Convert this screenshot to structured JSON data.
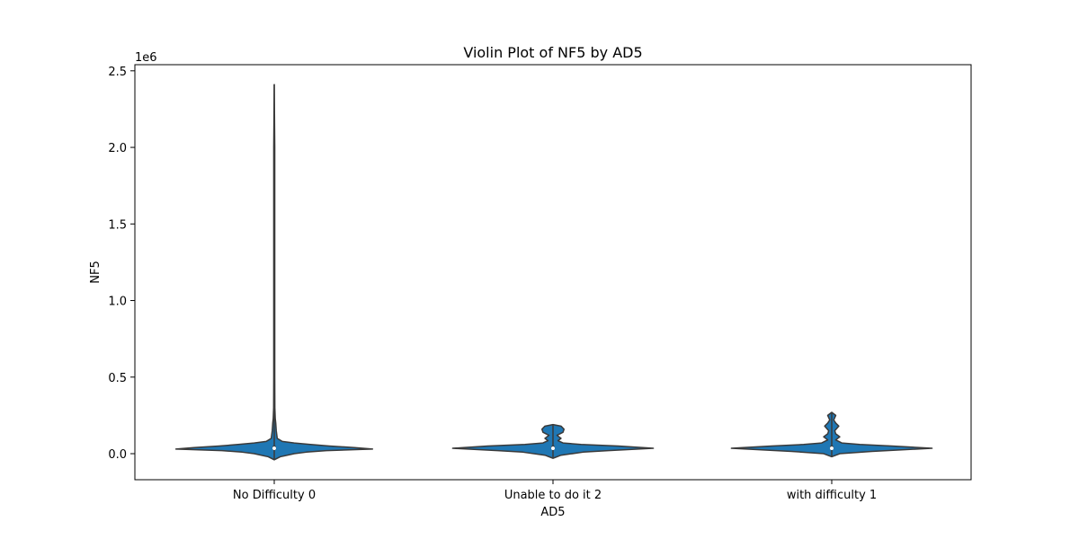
{
  "chart_data": {
    "type": "violin",
    "title": "Violin Plot of NF5 by AD5",
    "xlabel": "AD5",
    "ylabel": "NF5",
    "y_offset_label": "1e6",
    "y_scale": 1000000,
    "ylim": [
      -0.17,
      2.54
    ],
    "yticks": [
      0.0,
      0.5,
      1.0,
      1.5,
      2.0,
      2.5
    ],
    "ytick_labels": [
      "0.0",
      "0.5",
      "1.0",
      "1.5",
      "2.0",
      "2.5"
    ],
    "grid": false,
    "categories": [
      "No Difficulty 0",
      "Unable to do it 2",
      "with difficulty 1"
    ],
    "fill_color": "#1f77b4",
    "edge_color": "#3a3a3a",
    "violins": [
      {
        "category": "No Difficulty 0",
        "median": 0.035,
        "q1": 0.025,
        "q3": 0.05,
        "min": -0.04,
        "max": 2.41,
        "profile": [
          [
            -0.04,
            0.0
          ],
          [
            -0.02,
            0.06
          ],
          [
            0.0,
            0.2
          ],
          [
            0.01,
            0.32
          ],
          [
            0.02,
            0.52
          ],
          [
            0.03,
            0.98
          ],
          [
            0.04,
            0.8
          ],
          [
            0.05,
            0.55
          ],
          [
            0.06,
            0.36
          ],
          [
            0.07,
            0.2
          ],
          [
            0.08,
            0.08
          ],
          [
            0.1,
            0.03
          ],
          [
            0.15,
            0.02
          ],
          [
            0.2,
            0.015
          ],
          [
            0.23,
            0.01
          ],
          [
            0.3,
            0.006
          ],
          [
            0.5,
            0.005
          ],
          [
            1.0,
            0.005
          ],
          [
            1.5,
            0.005
          ],
          [
            2.0,
            0.005
          ],
          [
            2.41,
            0.0
          ]
        ]
      },
      {
        "category": "Unable to do it 2",
        "median": 0.035,
        "q1": 0.028,
        "q3": 0.05,
        "min": -0.03,
        "max": 0.19,
        "profile": [
          [
            -0.03,
            0.0
          ],
          [
            -0.01,
            0.08
          ],
          [
            0.01,
            0.3
          ],
          [
            0.02,
            0.55
          ],
          [
            0.035,
            1.0
          ],
          [
            0.05,
            0.65
          ],
          [
            0.06,
            0.28
          ],
          [
            0.07,
            0.1
          ],
          [
            0.085,
            0.05
          ],
          [
            0.1,
            0.08
          ],
          [
            0.12,
            0.04
          ],
          [
            0.14,
            0.1
          ],
          [
            0.16,
            0.11
          ],
          [
            0.18,
            0.08
          ],
          [
            0.19,
            0.0
          ]
        ]
      },
      {
        "category": "with difficulty 1",
        "median": 0.035,
        "q1": 0.028,
        "q3": 0.05,
        "min": -0.02,
        "max": 0.27,
        "profile": [
          [
            -0.02,
            0.0
          ],
          [
            0.0,
            0.08
          ],
          [
            0.015,
            0.4
          ],
          [
            0.035,
            1.0
          ],
          [
            0.05,
            0.6
          ],
          [
            0.06,
            0.28
          ],
          [
            0.07,
            0.1
          ],
          [
            0.09,
            0.04
          ],
          [
            0.11,
            0.08
          ],
          [
            0.13,
            0.04
          ],
          [
            0.15,
            0.03
          ],
          [
            0.18,
            0.07
          ],
          [
            0.2,
            0.04
          ],
          [
            0.22,
            0.02
          ],
          [
            0.25,
            0.04
          ],
          [
            0.27,
            0.0
          ]
        ]
      }
    ]
  }
}
